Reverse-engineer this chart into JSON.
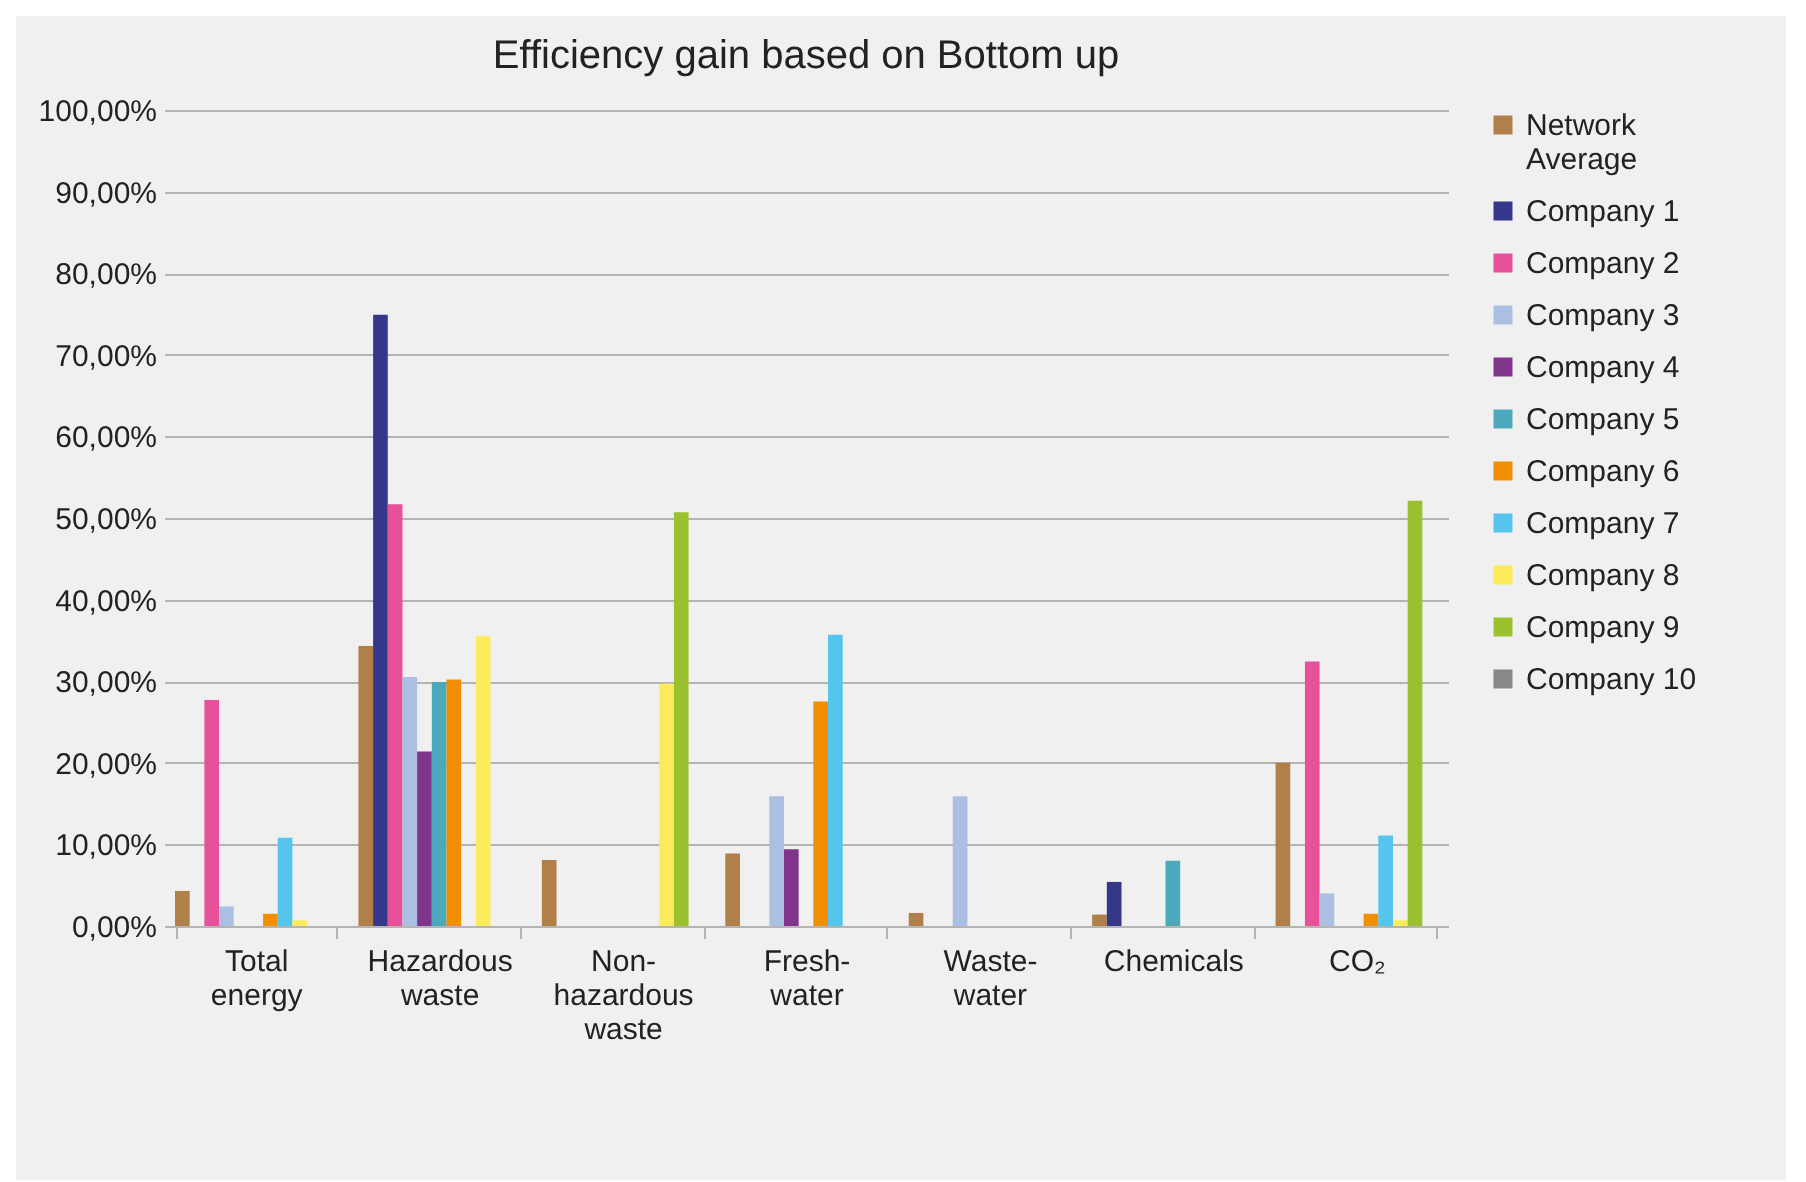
{
  "chart_data": {
    "type": "bar",
    "title": "Efficiency gain based on Bottom up",
    "categories": [
      "Total energy",
      "Hazardous waste",
      "Non-hazardous waste",
      "Fresh-water",
      "Waste-water",
      "Chemicals",
      "CO₂"
    ],
    "series": [
      {
        "name": "Network Average",
        "color": "#b07f4a",
        "values": [
          4.3,
          34.3,
          8.1,
          8.9,
          1.6,
          1.4,
          20.0
        ]
      },
      {
        "name": "Company 1",
        "color": "#35378a",
        "values": [
          0,
          74.9,
          0,
          0,
          0,
          5.4,
          0
        ]
      },
      {
        "name": "Company 2",
        "color": "#e8519a",
        "values": [
          27.7,
          51.7,
          0,
          0,
          0,
          0,
          32.4
        ]
      },
      {
        "name": "Company 3",
        "color": "#abbfe3",
        "values": [
          2.4,
          30.5,
          0,
          15.9,
          15.9,
          0,
          4.0
        ]
      },
      {
        "name": "Company 4",
        "color": "#7f358a",
        "values": [
          null,
          21.4,
          0,
          9.4,
          0,
          0,
          null
        ]
      },
      {
        "name": "Company 5",
        "color": "#4ca8bb",
        "values": [
          0,
          29.9,
          0,
          0,
          0,
          8.0,
          0
        ]
      },
      {
        "name": "Company 6",
        "color": "#f28f00",
        "values": [
          1.5,
          30.2,
          0,
          27.5,
          0,
          0,
          1.5
        ]
      },
      {
        "name": "Company 7",
        "color": "#55c5ee",
        "values": [
          10.8,
          0,
          0,
          35.7,
          0,
          0,
          11.1
        ]
      },
      {
        "name": "Company 8",
        "color": "#fdeb5a",
        "values": [
          0.7,
          35.5,
          29.7,
          0,
          0,
          0,
          0.7
        ]
      },
      {
        "name": "Company 9",
        "color": "#9bc22e",
        "values": [
          0,
          0,
          50.7,
          0,
          0,
          0,
          52.1
        ]
      },
      {
        "name": "Company 10",
        "color": "#888888",
        "values": [
          0,
          0,
          0,
          0,
          0,
          0,
          0
        ]
      }
    ],
    "ylim": [
      0,
      100
    ],
    "yticks": [
      {
        "value": 0,
        "label": "0,00%"
      },
      {
        "value": 10,
        "label": "10,00%"
      },
      {
        "value": 20,
        "label": "20,00%"
      },
      {
        "value": 30,
        "label": "30,00%"
      },
      {
        "value": 40,
        "label": "40,00%"
      },
      {
        "value": 50,
        "label": "50,00%"
      },
      {
        "value": 60,
        "label": "60,00%"
      },
      {
        "value": 70,
        "label": "70,00%"
      },
      {
        "value": 80,
        "label": "80,00%"
      },
      {
        "value": 90,
        "label": "90,00%"
      },
      {
        "value": 100,
        "label": "100,00%"
      }
    ],
    "grid": "y",
    "legend": "right"
  }
}
